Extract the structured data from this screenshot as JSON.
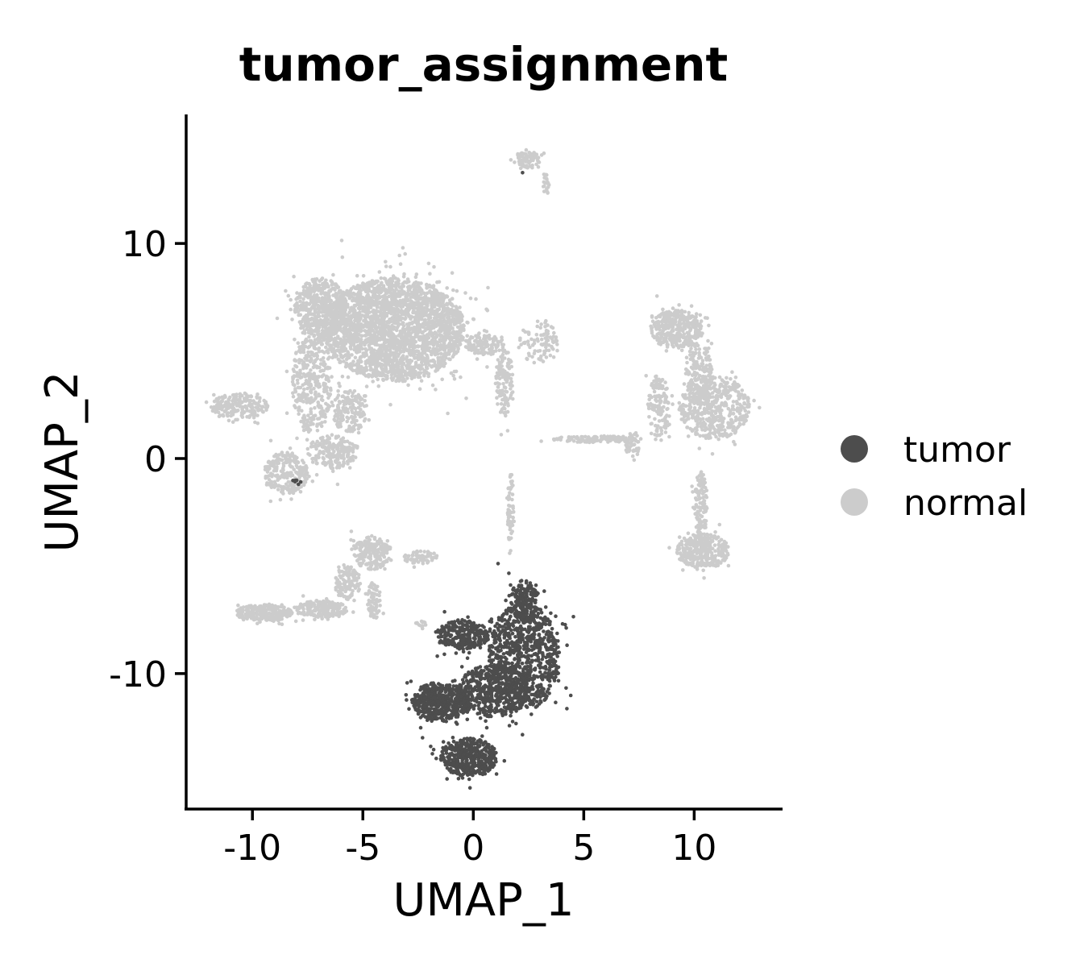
{
  "chart_data": {
    "type": "scatter",
    "title": "tumor_assignment",
    "xlabel": "UMAP_1",
    "ylabel": "UMAP_2",
    "xlim": [
      -13,
      14
    ],
    "ylim": [
      -16.3,
      16
    ],
    "xticks": [
      -10,
      -5,
      0,
      5,
      10
    ],
    "xtick_labels": [
      "-10",
      "-5",
      "0",
      "5",
      "10"
    ],
    "yticks": [
      -10,
      0,
      10
    ],
    "ytick_labels": [
      "-10",
      "0",
      "10"
    ],
    "grid": false,
    "legend_position": "right",
    "legend": [
      {
        "name": "tumor",
        "color": "#4d4d4d"
      },
      {
        "name": "normal",
        "color": "#cccccc"
      }
    ],
    "series": [
      {
        "name": "normal",
        "color": "#cccccc",
        "regions": [
          {
            "cx": -3.6,
            "cy": 6.0,
            "rx": 3.2,
            "ry": 2.4,
            "n": 2600
          },
          {
            "cx": -6.9,
            "cy": 7.0,
            "rx": 1.2,
            "ry": 1.4,
            "n": 500
          },
          {
            "cx": -7.3,
            "cy": 3.6,
            "rx": 0.9,
            "ry": 2.4,
            "n": 350
          },
          {
            "cx": -10.6,
            "cy": 2.4,
            "rx": 1.3,
            "ry": 0.6,
            "n": 200
          },
          {
            "cx": -8.5,
            "cy": -0.7,
            "rx": 1.0,
            "ry": 1.0,
            "n": 250
          },
          {
            "cx": -6.4,
            "cy": 0.3,
            "rx": 1.1,
            "ry": 0.8,
            "n": 200
          },
          {
            "cx": -5.6,
            "cy": 2.2,
            "rx": 0.8,
            "ry": 1.0,
            "n": 160
          },
          {
            "cx": 0.5,
            "cy": 5.3,
            "rx": 0.9,
            "ry": 0.5,
            "n": 120
          },
          {
            "cx": 1.4,
            "cy": 3.5,
            "rx": 0.4,
            "ry": 1.6,
            "n": 130
          },
          {
            "cx": 3.0,
            "cy": 5.4,
            "rx": 0.9,
            "ry": 1.0,
            "n": 90
          },
          {
            "cx": 2.5,
            "cy": 13.9,
            "rx": 0.5,
            "ry": 0.4,
            "n": 90
          },
          {
            "cx": 3.3,
            "cy": 12.8,
            "rx": 0.15,
            "ry": 0.6,
            "n": 20
          },
          {
            "cx": 9.2,
            "cy": 6.0,
            "rx": 1.2,
            "ry": 0.9,
            "n": 380
          },
          {
            "cx": 10.9,
            "cy": 2.4,
            "rx": 1.6,
            "ry": 1.5,
            "n": 520
          },
          {
            "cx": 8.4,
            "cy": 2.4,
            "rx": 0.5,
            "ry": 1.5,
            "n": 140
          },
          {
            "cx": 10.2,
            "cy": 4.0,
            "rx": 0.6,
            "ry": 1.4,
            "n": 160
          },
          {
            "cx": 10.3,
            "cy": -2.2,
            "rx": 0.3,
            "ry": 1.6,
            "n": 120
          },
          {
            "cx": 10.4,
            "cy": -4.3,
            "rx": 1.2,
            "ry": 0.8,
            "n": 340
          },
          {
            "cx": 5.6,
            "cy": 0.9,
            "rx": 2.0,
            "ry": 0.15,
            "n": 130
          },
          {
            "cx": 7.2,
            "cy": 0.6,
            "rx": 0.3,
            "ry": 0.7,
            "n": 40
          },
          {
            "cx": 1.7,
            "cy": -2.5,
            "rx": 0.15,
            "ry": 1.8,
            "n": 60
          },
          {
            "cx": -9.5,
            "cy": -7.2,
            "rx": 1.3,
            "ry": 0.4,
            "n": 260
          },
          {
            "cx": -6.9,
            "cy": -7.0,
            "rx": 1.2,
            "ry": 0.4,
            "n": 200
          },
          {
            "cx": -4.6,
            "cy": -4.4,
            "rx": 0.8,
            "ry": 0.8,
            "n": 200
          },
          {
            "cx": -5.7,
            "cy": -5.8,
            "rx": 0.6,
            "ry": 0.8,
            "n": 120
          },
          {
            "cx": -4.5,
            "cy": -6.6,
            "rx": 0.3,
            "ry": 0.9,
            "n": 70
          },
          {
            "cx": -2.4,
            "cy": -4.6,
            "rx": 0.8,
            "ry": 0.3,
            "n": 60
          },
          {
            "cx": -2.4,
            "cy": -7.7,
            "rx": 0.25,
            "ry": 0.15,
            "n": 12
          },
          {
            "cx": 3.4,
            "cy": -9.9,
            "rx": 0.2,
            "ry": 0.15,
            "n": 8
          }
        ]
      },
      {
        "name": "tumor",
        "color": "#4d4d4d",
        "regions": [
          {
            "cx": 2.3,
            "cy": -9.2,
            "rx": 1.6,
            "ry": 2.5,
            "n": 900
          },
          {
            "cx": -1.5,
            "cy": -11.3,
            "rx": 1.3,
            "ry": 0.9,
            "n": 500
          },
          {
            "cx": -0.2,
            "cy": -13.9,
            "rx": 1.3,
            "ry": 0.9,
            "n": 450
          },
          {
            "cx": 0.9,
            "cy": -10.8,
            "rx": 1.6,
            "ry": 1.2,
            "n": 500
          },
          {
            "cx": -0.5,
            "cy": -8.2,
            "rx": 1.2,
            "ry": 0.7,
            "n": 280
          },
          {
            "cx": 2.3,
            "cy": -6.6,
            "rx": 0.6,
            "ry": 1.0,
            "n": 150
          },
          {
            "cx": -8.0,
            "cy": -1.1,
            "rx": 0.3,
            "ry": 0.2,
            "n": 6
          },
          {
            "cx": 2.2,
            "cy": 13.3,
            "rx": 0.04,
            "ry": 0.04,
            "n": 1
          }
        ]
      }
    ]
  }
}
